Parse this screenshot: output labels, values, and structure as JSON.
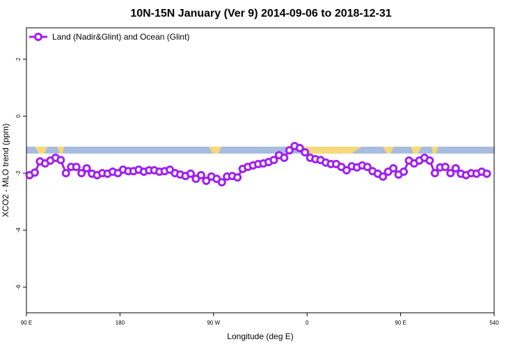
{
  "chart_data": {
    "type": "line",
    "title": "10N-15N January (Ver 9)   2014-09-06 to 2018-12-31",
    "x_label": "Longitude (deg E)",
    "y_label": "XCO2 - MLO trend (ppm)",
    "xlim": [
      90,
      540
    ],
    "ylim": [
      -6.9,
      3.1
    ],
    "xticks": [
      {
        "value": 90,
        "label": "90 E"
      },
      180,
      {
        "value": 270,
        "label": "90 W"
      },
      {
        "value": 360,
        "label": "0"
      },
      {
        "value": 450,
        "label": "90 E"
      },
      540
    ],
    "yticks": [
      2,
      0,
      -2,
      -4,
      -6
    ],
    "legend": "top-left",
    "x": [
      93,
      98,
      103,
      108,
      113,
      118,
      123,
      128,
      133,
      138,
      143,
      148,
      153,
      158,
      163,
      168,
      173,
      178,
      183,
      188,
      193,
      198,
      203,
      208,
      213,
      218,
      223,
      228,
      233,
      238,
      243,
      248,
      253,
      258,
      263,
      268,
      273,
      278,
      283,
      288,
      293,
      298,
      303,
      308,
      313,
      318,
      323,
      328,
      333,
      338,
      343,
      348,
      353,
      358,
      363,
      368,
      373,
      378,
      383,
      388,
      393,
      398,
      403,
      408,
      413,
      418,
      423,
      428,
      433,
      438,
      443,
      448,
      453,
      458,
      463,
      468,
      473,
      478,
      483,
      488,
      493,
      498,
      503,
      508,
      513,
      518,
      523,
      528,
      533
    ],
    "series": [
      {
        "name": "Land (Nadir&Glint) and Ocean (Glint)",
        "color": "#a020f0",
        "values": [
          -2.07,
          -1.98,
          -1.59,
          -1.66,
          -1.56,
          -1.46,
          -1.54,
          -2.0,
          -1.78,
          -1.78,
          -2.0,
          -1.83,
          -2.02,
          -2.07,
          -2.0,
          -2.02,
          -1.95,
          -2.0,
          -1.88,
          -1.93,
          -1.93,
          -1.88,
          -1.95,
          -1.9,
          -1.9,
          -1.95,
          -1.93,
          -1.88,
          -2.0,
          -2.05,
          -2.1,
          -2.02,
          -2.2,
          -2.07,
          -2.27,
          -2.12,
          -2.2,
          -2.32,
          -2.12,
          -2.1,
          -2.15,
          -1.85,
          -1.78,
          -1.73,
          -1.68,
          -1.66,
          -1.61,
          -1.54,
          -1.37,
          -1.46,
          -1.2,
          -1.05,
          -1.12,
          -1.27,
          -1.46,
          -1.51,
          -1.54,
          -1.63,
          -1.68,
          -1.68,
          -1.78,
          -1.9,
          -1.76,
          -1.8,
          -1.73,
          -1.78,
          -1.93,
          -2.02,
          -2.12,
          -1.95,
          -1.83,
          -2.05,
          -1.95,
          -1.56,
          -1.66,
          -1.56,
          -1.46,
          -1.56,
          -2.0,
          -1.8,
          -1.78,
          -2.0,
          -1.83,
          -2.02,
          -2.07,
          -2.0,
          -2.02,
          -1.95,
          -2.02
        ]
      }
    ]
  }
}
